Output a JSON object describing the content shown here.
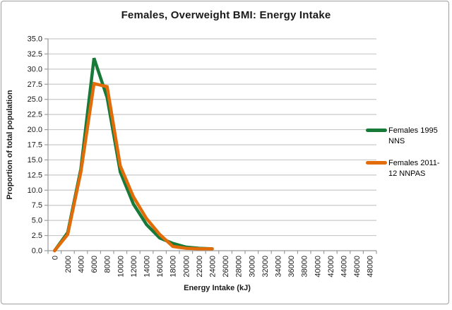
{
  "title": "Females, Overweight BMI: Energy Intake",
  "colors": {
    "series1": "#177a39",
    "series2": "#e36c0a",
    "gridline": "#c9c9c9",
    "axis": "#9b9b9b",
    "text": "#1a1a1a",
    "frame_border": "#9e9e9e"
  },
  "legend": {
    "items": [
      {
        "label": "Females 1995 NNS"
      },
      {
        "label": "Females 2011-12 NNPAS"
      }
    ]
  },
  "chart_data": {
    "type": "line",
    "title": "Females, Overweight BMI: Energy Intake",
    "xlabel": "Energy Intake (kJ)",
    "ylabel": "Proportion of total population",
    "ylim": [
      0,
      35
    ],
    "ytick_step": 2.5,
    "ytick_labels": [
      "35.0",
      "32.5",
      "30.0",
      "27.5",
      "25.0",
      "22.5",
      "20.0",
      "17.5",
      "15.0",
      "12.5",
      "10.0",
      "7.5",
      "5.0",
      "2.5",
      "0.0"
    ],
    "grid": true,
    "legend_position": "right",
    "categories": [
      0,
      2000,
      4000,
      6000,
      8000,
      10000,
      12000,
      14000,
      16000,
      18000,
      20000,
      22000,
      24000,
      26000,
      28000,
      30000,
      32000,
      34000,
      36000,
      38000,
      40000,
      42000,
      44000,
      46000,
      48000
    ],
    "series": [
      {
        "name": "Females 1995 NNS",
        "color": "#177a39",
        "values": [
          0,
          3.0,
          13.5,
          31.8,
          25.3,
          13.0,
          7.7,
          4.3,
          2.1,
          1.2,
          0.6,
          0.4,
          0.3,
          null,
          null,
          null,
          null,
          null,
          null,
          null,
          null,
          null,
          null,
          null,
          null
        ]
      },
      {
        "name": "Females 2011-12 NNPAS",
        "color": "#e36c0a",
        "values": [
          0,
          2.7,
          13.0,
          27.6,
          27.1,
          14.0,
          8.9,
          5.3,
          2.7,
          0.7,
          0.4,
          0.3,
          0.3,
          null,
          null,
          null,
          null,
          null,
          null,
          null,
          null,
          null,
          null,
          null,
          null
        ]
      }
    ]
  }
}
